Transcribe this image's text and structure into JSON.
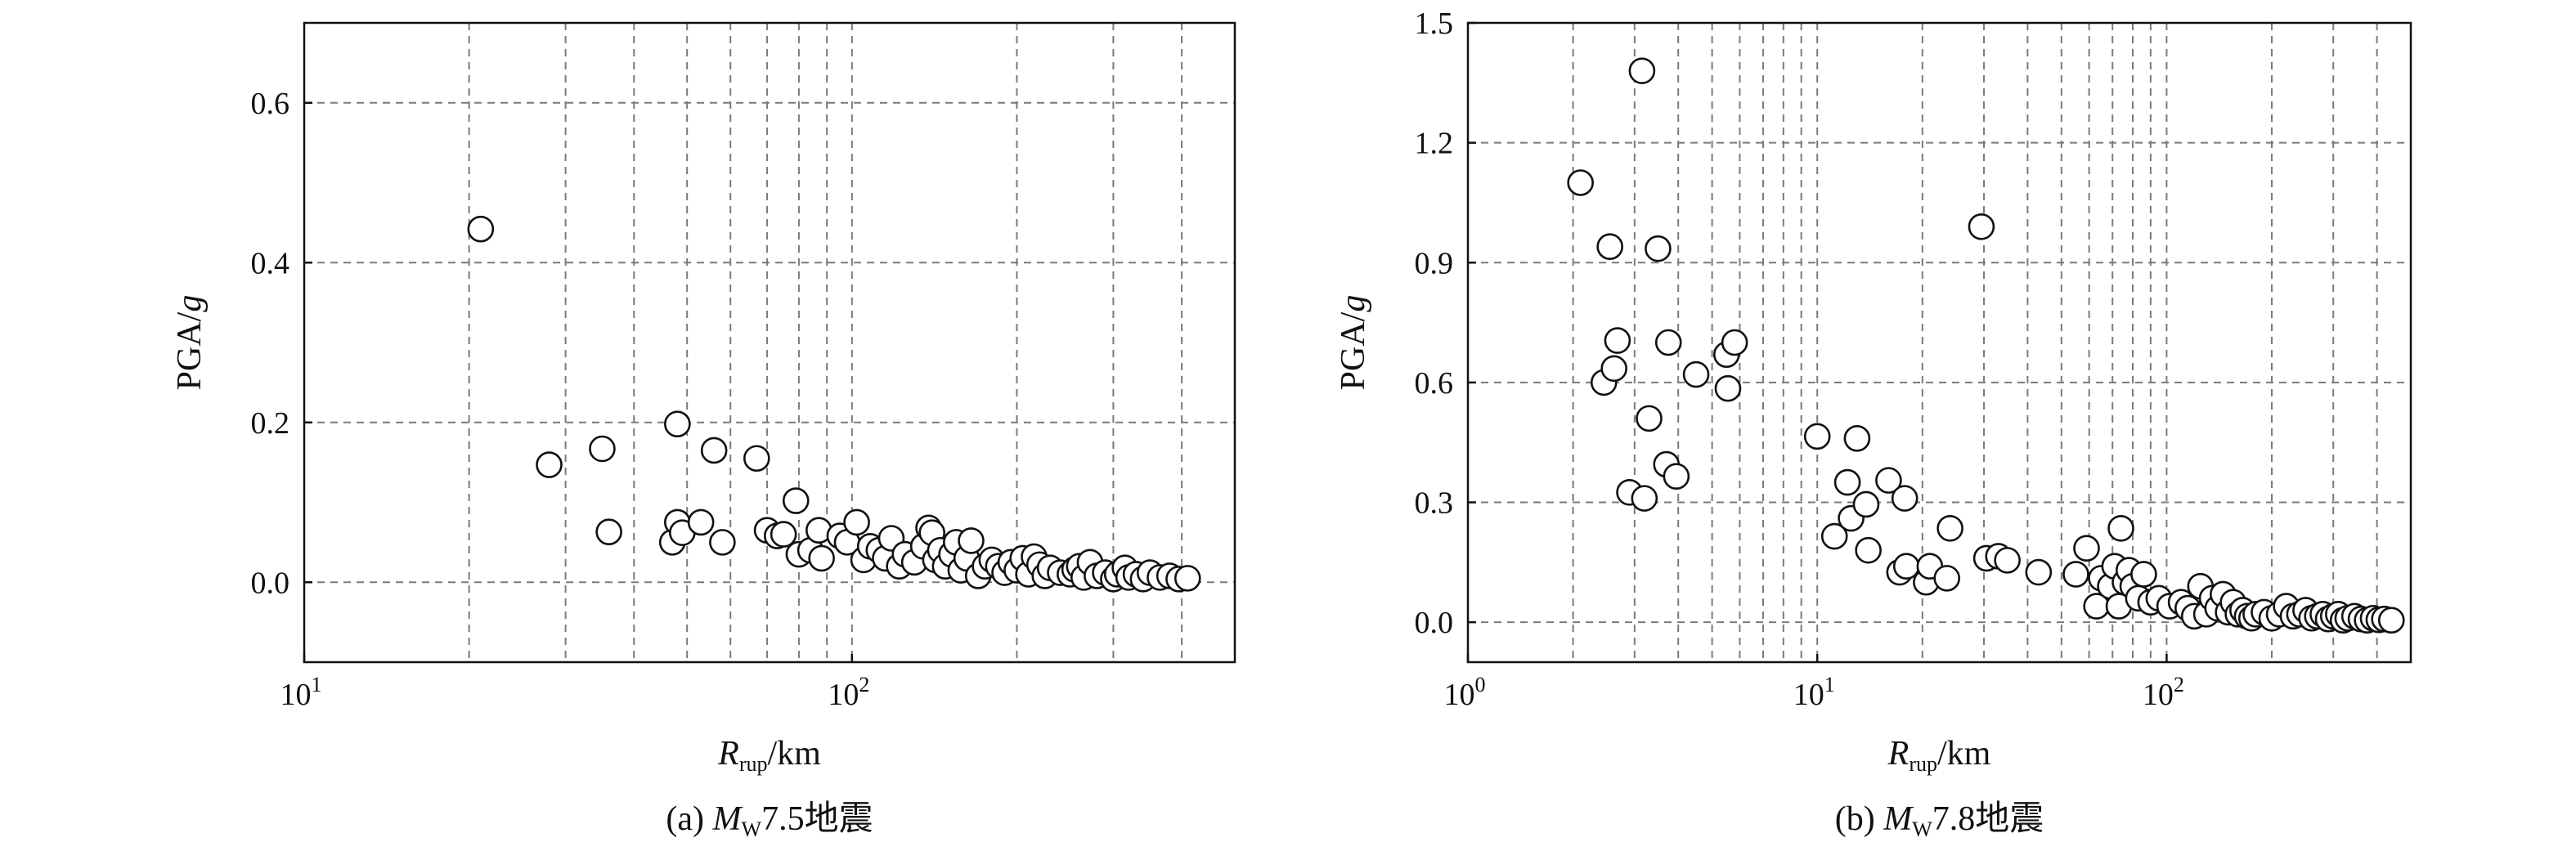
{
  "chart_data": [
    {
      "type": "scatter",
      "x_scale": "log",
      "y_scale": "linear",
      "grid": true,
      "xlim": [
        10,
        500
      ],
      "ylim": [
        -0.1,
        0.7
      ],
      "x_ticks": [
        {
          "value": 10,
          "base": "10",
          "exp": "1"
        },
        {
          "value": 100,
          "base": "10",
          "exp": "2"
        }
      ],
      "y_ticks": [
        {
          "value": 0.0,
          "label": "0.0"
        },
        {
          "value": 0.2,
          "label": "0.2"
        },
        {
          "value": 0.4,
          "label": "0.4"
        },
        {
          "value": 0.6,
          "label": "0.6"
        }
      ],
      "ylabel": "PGA/g",
      "xlabel": "Rrup/km",
      "caption": {
        "prefix": "(a) ",
        "m": "M",
        "w": "W",
        "rest": "7.5地震"
      },
      "points": [
        [
          21,
          0.442
        ],
        [
          28,
          0.147
        ],
        [
          35,
          0.167
        ],
        [
          36,
          0.063
        ],
        [
          47,
          0.05
        ],
        [
          48,
          0.198
        ],
        [
          48,
          0.075
        ],
        [
          49,
          0.062
        ],
        [
          53,
          0.075
        ],
        [
          56,
          0.165
        ],
        [
          58,
          0.05
        ],
        [
          67,
          0.155
        ],
        [
          70,
          0.065
        ],
        [
          73,
          0.058
        ],
        [
          75,
          0.06
        ],
        [
          79,
          0.102
        ],
        [
          80,
          0.035
        ],
        [
          84,
          0.04
        ],
        [
          87,
          0.065
        ],
        [
          88,
          0.03
        ],
        [
          95,
          0.058
        ],
        [
          98,
          0.05
        ],
        [
          102,
          0.075
        ],
        [
          105,
          0.028
        ],
        [
          108,
          0.045
        ],
        [
          112,
          0.04
        ],
        [
          115,
          0.03
        ],
        [
          118,
          0.055
        ],
        [
          122,
          0.02
        ],
        [
          125,
          0.035
        ],
        [
          130,
          0.025
        ],
        [
          135,
          0.045
        ],
        [
          138,
          0.068
        ],
        [
          140,
          0.062
        ],
        [
          142,
          0.028
        ],
        [
          145,
          0.04
        ],
        [
          148,
          0.02
        ],
        [
          152,
          0.035
        ],
        [
          155,
          0.05
        ],
        [
          158,
          0.015
        ],
        [
          162,
          0.03
        ],
        [
          165,
          0.052
        ],
        [
          170,
          0.008
        ],
        [
          175,
          0.02
        ],
        [
          180,
          0.028
        ],
        [
          185,
          0.02
        ],
        [
          190,
          0.012
        ],
        [
          195,
          0.025
        ],
        [
          200,
          0.015
        ],
        [
          205,
          0.03
        ],
        [
          210,
          0.01
        ],
        [
          215,
          0.032
        ],
        [
          220,
          0.022
        ],
        [
          225,
          0.008
        ],
        [
          230,
          0.018
        ],
        [
          240,
          0.012
        ],
        [
          250,
          0.01
        ],
        [
          255,
          0.016
        ],
        [
          260,
          0.02
        ],
        [
          265,
          0.006
        ],
        [
          272,
          0.025
        ],
        [
          280,
          0.008
        ],
        [
          290,
          0.012
        ],
        [
          300,
          0.004
        ],
        [
          305,
          0.01
        ],
        [
          315,
          0.018
        ],
        [
          320,
          0.006
        ],
        [
          330,
          0.01
        ],
        [
          340,
          0.004
        ],
        [
          350,
          0.012
        ],
        [
          365,
          0.006
        ],
        [
          380,
          0.008
        ],
        [
          395,
          0.004
        ],
        [
          410,
          0.005
        ]
      ]
    },
    {
      "type": "scatter",
      "x_scale": "log",
      "y_scale": "linear",
      "grid": true,
      "xlim": [
        1,
        500
      ],
      "ylim": [
        -0.1,
        1.5
      ],
      "x_ticks": [
        {
          "value": 1,
          "base": "10",
          "exp": "0"
        },
        {
          "value": 10,
          "base": "10",
          "exp": "1"
        },
        {
          "value": 100,
          "base": "10",
          "exp": "2"
        }
      ],
      "y_ticks": [
        {
          "value": 0.0,
          "label": "0.0"
        },
        {
          "value": 0.3,
          "label": "0.3"
        },
        {
          "value": 0.6,
          "label": "0.6"
        },
        {
          "value": 0.9,
          "label": "0.9"
        },
        {
          "value": 1.2,
          "label": "1.2"
        },
        {
          "value": 1.5,
          "label": "1.5"
        }
      ],
      "ylabel": "PGA/g",
      "xlabel": "Rrup/km",
      "caption": {
        "prefix": "(b) ",
        "m": "M",
        "w": "W",
        "rest": "7.8地震"
      },
      "points": [
        [
          2.1,
          1.1
        ],
        [
          2.45,
          0.6
        ],
        [
          2.55,
          0.94
        ],
        [
          2.62,
          0.635
        ],
        [
          2.68,
          0.705
        ],
        [
          2.9,
          0.325
        ],
        [
          3.15,
          1.38
        ],
        [
          3.2,
          0.31
        ],
        [
          3.3,
          0.51
        ],
        [
          3.5,
          0.935
        ],
        [
          3.7,
          0.395
        ],
        [
          3.75,
          0.7
        ],
        [
          3.95,
          0.365
        ],
        [
          4.5,
          0.62
        ],
        [
          5.5,
          0.67
        ],
        [
          5.55,
          0.585
        ],
        [
          5.8,
          0.7
        ],
        [
          10,
          0.465
        ],
        [
          11.2,
          0.215
        ],
        [
          12.2,
          0.35
        ],
        [
          12.5,
          0.26
        ],
        [
          13,
          0.46
        ],
        [
          13.8,
          0.295
        ],
        [
          14,
          0.18
        ],
        [
          16,
          0.355
        ],
        [
          17.2,
          0.125
        ],
        [
          17.8,
          0.31
        ],
        [
          18,
          0.14
        ],
        [
          20.5,
          0.1
        ],
        [
          21,
          0.14
        ],
        [
          23.5,
          0.11
        ],
        [
          24,
          0.235
        ],
        [
          29.5,
          0.99
        ],
        [
          30.5,
          0.16
        ],
        [
          33,
          0.165
        ],
        [
          35,
          0.155
        ],
        [
          43,
          0.125
        ],
        [
          55,
          0.12
        ],
        [
          59,
          0.185
        ],
        [
          63,
          0.04
        ],
        [
          65,
          0.11
        ],
        [
          69,
          0.09
        ],
        [
          71,
          0.14
        ],
        [
          73,
          0.04
        ],
        [
          74,
          0.235
        ],
        [
          76,
          0.1
        ],
        [
          78,
          0.13
        ],
        [
          80,
          0.09
        ],
        [
          83,
          0.06
        ],
        [
          86,
          0.12
        ],
        [
          90,
          0.05
        ],
        [
          95,
          0.06
        ],
        [
          102,
          0.04
        ],
        [
          110,
          0.05
        ],
        [
          115,
          0.035
        ],
        [
          120,
          0.015
        ],
        [
          125,
          0.09
        ],
        [
          130,
          0.02
        ],
        [
          135,
          0.06
        ],
        [
          140,
          0.035
        ],
        [
          145,
          0.07
        ],
        [
          150,
          0.025
        ],
        [
          155,
          0.05
        ],
        [
          160,
          0.02
        ],
        [
          165,
          0.03
        ],
        [
          170,
          0.015
        ],
        [
          175,
          0.01
        ],
        [
          180,
          0.02
        ],
        [
          190,
          0.025
        ],
        [
          200,
          0.01
        ],
        [
          210,
          0.02
        ],
        [
          220,
          0.04
        ],
        [
          230,
          0.015
        ],
        [
          240,
          0.02
        ],
        [
          250,
          0.03
        ],
        [
          260,
          0.01
        ],
        [
          270,
          0.015
        ],
        [
          280,
          0.02
        ],
        [
          290,
          0.008
        ],
        [
          300,
          0.015
        ],
        [
          310,
          0.02
        ],
        [
          320,
          0.005
        ],
        [
          330,
          0.01
        ],
        [
          345,
          0.015
        ],
        [
          360,
          0.008
        ],
        [
          375,
          0.005
        ],
        [
          390,
          0.01
        ],
        [
          405,
          0.006
        ],
        [
          420,
          0.008
        ],
        [
          440,
          0.005
        ]
      ]
    }
  ]
}
